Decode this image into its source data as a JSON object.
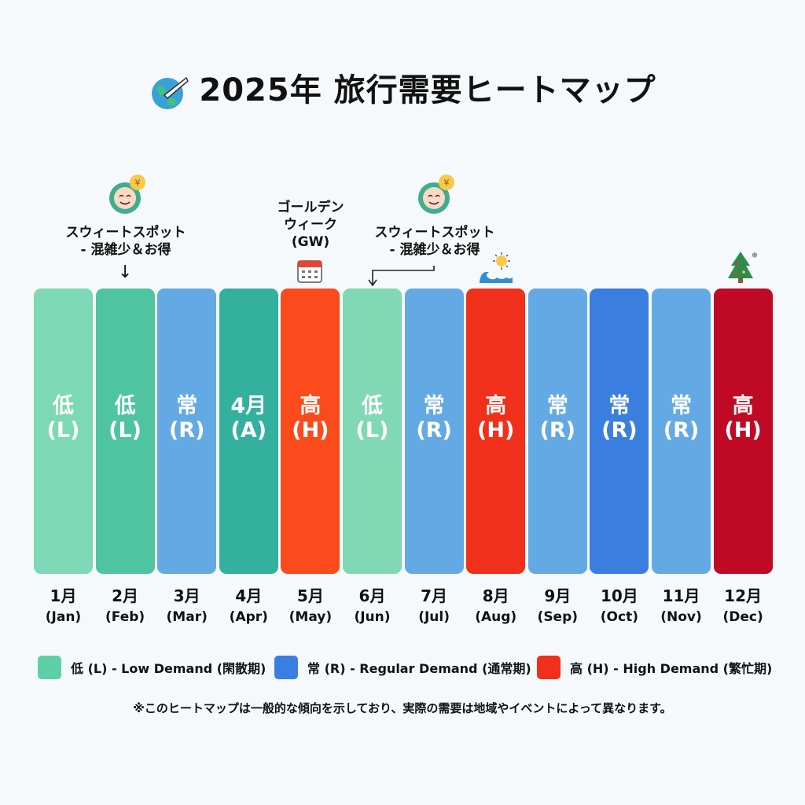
{
  "title": "2025年 旅行需要ヒートマップ",
  "chart_data": {
    "type": "heatmap",
    "title": "2025年 旅行需要ヒートマップ",
    "categories": [
      {
        "month": "1月",
        "en": "(Jan)"
      },
      {
        "month": "2月",
        "en": "(Feb)"
      },
      {
        "month": "3月",
        "en": "(Mar)"
      },
      {
        "month": "4月",
        "en": "(Apr)"
      },
      {
        "month": "5月",
        "en": "(May)"
      },
      {
        "month": "6月",
        "en": "(Jun)"
      },
      {
        "month": "7月",
        "en": "(Jul)"
      },
      {
        "month": "8月",
        "en": "(Aug)"
      },
      {
        "month": "9月",
        "en": "(Sep)"
      },
      {
        "month": "10月",
        "en": "(Oct)"
      },
      {
        "month": "11月",
        "en": "(Nov)"
      },
      {
        "month": "12月",
        "en": "(Dec)"
      }
    ],
    "values": [
      {
        "kanji": "低",
        "code": "(L)",
        "color": "#7dd8b5"
      },
      {
        "kanji": "低",
        "code": "(L)",
        "color": "#4fc4a0"
      },
      {
        "kanji": "常",
        "code": "(R)",
        "color": "#63a9e4"
      },
      {
        "kanji": "4月",
        "code": "(A)",
        "color": "#34b09e"
      },
      {
        "kanji": "高",
        "code": "(H)",
        "color": "#fb4a1c"
      },
      {
        "kanji": "低",
        "code": "(L)",
        "color": "#80d9b4"
      },
      {
        "kanji": "常",
        "code": "(R)",
        "color": "#63a9e4"
      },
      {
        "kanji": "高",
        "code": "(H)",
        "color": "#f0301a"
      },
      {
        "kanji": "常",
        "code": "(R)",
        "color": "#63a9e4"
      },
      {
        "kanji": "常",
        "code": "(R)",
        "color": "#3a7fe0"
      },
      {
        "kanji": "常",
        "code": "(R)",
        "color": "#63a9e4"
      },
      {
        "kanji": "高",
        "code": "(H)",
        "color": "#c00a25"
      }
    ],
    "legend": [
      {
        "label": "低 (L) - Low Demand (閑散期)",
        "color": "#5fcfa8"
      },
      {
        "label": "常 (R) - Regular Demand (通常期)",
        "color": "#3a7fe0"
      },
      {
        "label": "高 (H) - High Demand (繁忙期)",
        "color": "#f0301a"
      }
    ],
    "legend_position": "bottom"
  },
  "annotations": {
    "sweet_spot_1": {
      "line1": "スウィートスポット",
      "line2": "- 混雑少＆お得",
      "icon": "smiley-yen-icon"
    },
    "golden_week": {
      "line1": "ゴールデン",
      "line2": "ウィーク",
      "line3": "(GW)",
      "icon": "calendar-icon"
    },
    "sweet_spot_2": {
      "line1": "スウィートスポット",
      "line2": "- 混雑少＆お得",
      "icon": "smiley-yen-icon"
    },
    "summer_icon": "sun-wave-icon",
    "winter_icon": "christmas-tree-icon"
  },
  "footnote": "※このヒートマップは一般的な傾向を示しており、実際の需要は地域やイベントによって異なります。"
}
